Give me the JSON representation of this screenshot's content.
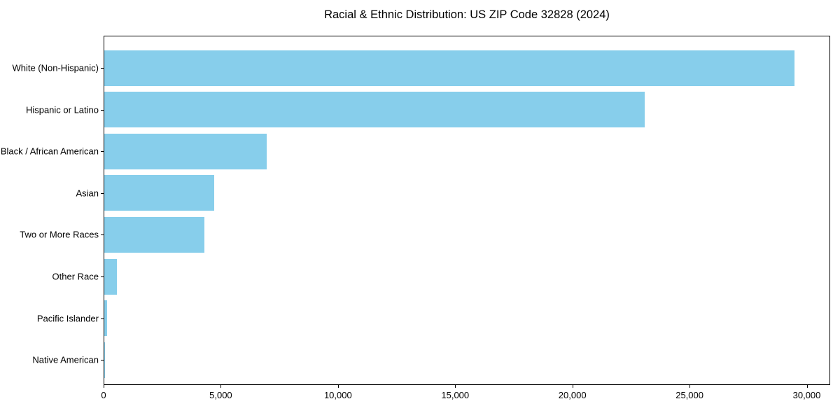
{
  "chart_data": {
    "type": "bar",
    "orientation": "horizontal",
    "title": "Racial & Ethnic Distribution: US ZIP Code 32828 (2024)",
    "xlabel": "",
    "ylabel": "",
    "categories": [
      "White (Non-Hispanic)",
      "Hispanic or Latino",
      "Black / African American",
      "Asian",
      "Two or More Races",
      "Other Race",
      "Pacific Islander",
      "Native American"
    ],
    "values": [
      29500,
      23100,
      6950,
      4700,
      4270,
      550,
      120,
      30
    ],
    "xlim": [
      0,
      31000
    ],
    "x_ticks": [
      0,
      5000,
      10000,
      15000,
      20000,
      25000,
      30000
    ],
    "x_tick_labels": [
      "0",
      "5,000",
      "10,000",
      "15,000",
      "20,000",
      "25,000",
      "30,000"
    ],
    "bar_color": "#87CEEB",
    "grid": false,
    "legend": null
  }
}
